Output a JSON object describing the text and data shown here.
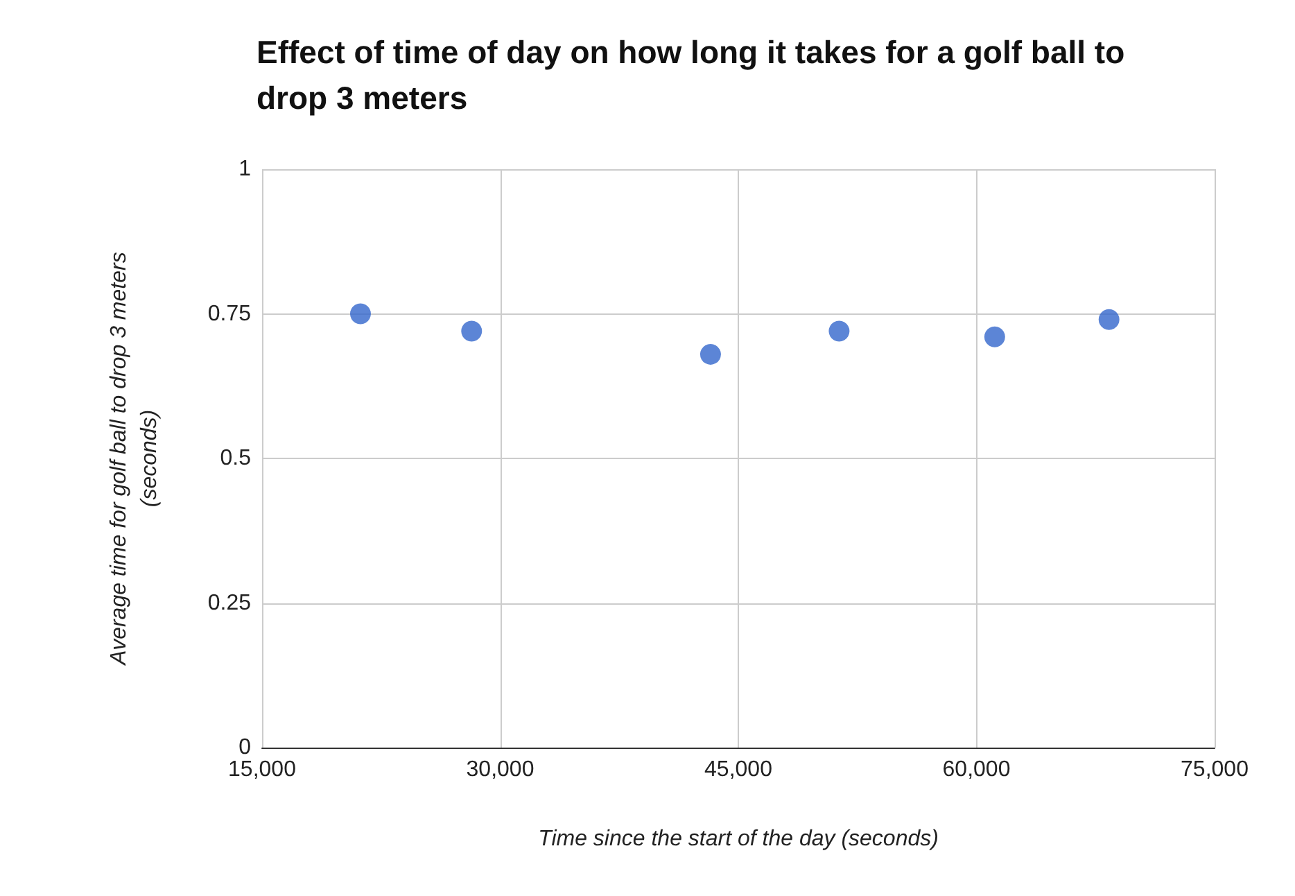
{
  "chart_data": {
    "type": "scatter",
    "title": "Effect of time of day on how long it takes for a golf ball to drop 3 meters",
    "xlabel": "Time since the start of the day (seconds)",
    "ylabel": "Average time for golf ball to drop 3 meters (seconds)",
    "x": [
      21200,
      28200,
      43250,
      51350,
      61150,
      68350
    ],
    "series": [
      {
        "color": "#3366cc",
        "values": [
          0.75,
          0.72,
          0.68,
          0.72,
          0.71,
          0.74
        ]
      }
    ],
    "xlim": [
      15000,
      75000
    ],
    "xticks": [
      {
        "value": 15000,
        "label": "15,000"
      },
      {
        "value": 30000,
        "label": "30,000"
      },
      {
        "value": 45000,
        "label": "45,000"
      },
      {
        "value": 60000,
        "label": "60,000"
      },
      {
        "value": 75000,
        "label": "75,000"
      }
    ],
    "ylim": [
      0,
      1
    ],
    "yticks": [
      0,
      0.25,
      0.5,
      0.75,
      1
    ],
    "grid": true,
    "marker": "circle"
  }
}
